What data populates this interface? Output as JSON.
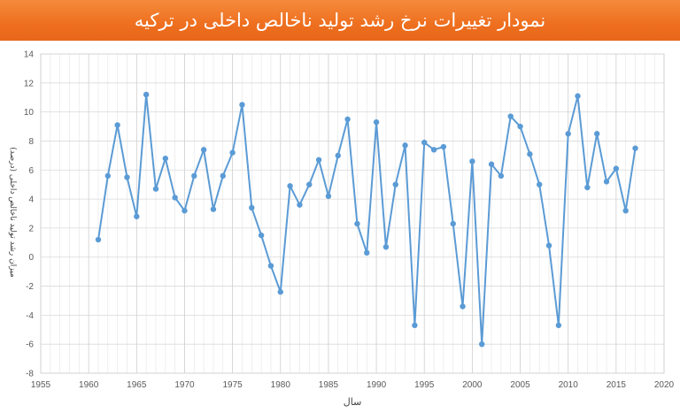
{
  "title": "نمودار تغییرات نرخ رشد تولید ناخالص داخلی در ترکیه",
  "chart_data": {
    "type": "line",
    "title": "نمودار تغییرات نرخ رشد تولید ناخالص داخلی در ترکیه",
    "xlabel": "سال",
    "ylabel": "میزان رشد تولید ناخالص داخلی (درصد)",
    "xlim": [
      1955,
      2020
    ],
    "ylim": [
      -8,
      14
    ],
    "xticks": [
      1955,
      1960,
      1965,
      1970,
      1975,
      1980,
      1985,
      1990,
      1995,
      2000,
      2005,
      2010,
      2015,
      2020
    ],
    "yticks": [
      -8,
      -6,
      -4,
      -2,
      0,
      2,
      4,
      6,
      8,
      10,
      12,
      14
    ],
    "grid": true,
    "color": "#5b9bd5",
    "x": [
      1961,
      1962,
      1963,
      1964,
      1965,
      1966,
      1967,
      1968,
      1969,
      1970,
      1971,
      1972,
      1973,
      1974,
      1975,
      1976,
      1977,
      1978,
      1979,
      1980,
      1981,
      1982,
      1983,
      1984,
      1985,
      1986,
      1987,
      1988,
      1989,
      1990,
      1991,
      1992,
      1993,
      1994,
      1995,
      1996,
      1997,
      1998,
      1999,
      2000,
      2001,
      2002,
      2003,
      2004,
      2005,
      2006,
      2007,
      2008,
      2009,
      2010,
      2011,
      2012,
      2013,
      2014,
      2015,
      2016,
      2017
    ],
    "y": [
      1.2,
      5.6,
      9.1,
      5.5,
      2.8,
      11.2,
      4.7,
      6.8,
      4.1,
      3.2,
      5.6,
      7.4,
      3.3,
      5.6,
      7.2,
      10.5,
      3.4,
      1.5,
      -0.6,
      -2.4,
      4.9,
      3.6,
      5.0,
      6.7,
      4.2,
      7.0,
      9.5,
      2.3,
      0.3,
      9.3,
      0.7,
      5.0,
      7.7,
      -4.7,
      7.9,
      7.4,
      7.6,
      2.3,
      -3.4,
      6.6,
      -6.0,
      6.4,
      5.6,
      9.7,
      9.0,
      7.1,
      5.0,
      0.8,
      -4.7,
      8.5,
      11.1,
      4.8,
      8.5,
      5.2,
      6.1,
      3.2,
      7.5
    ]
  }
}
